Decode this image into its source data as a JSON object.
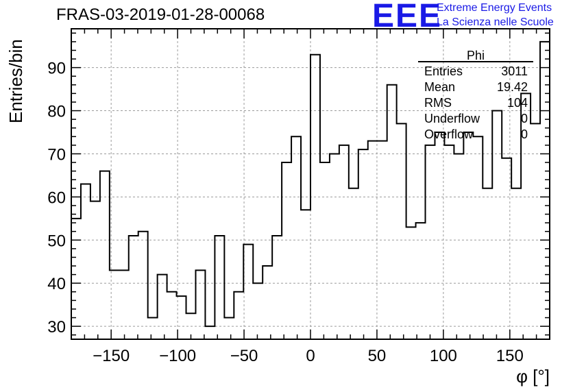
{
  "header": {
    "title": "FRAS-03-2019-01-28-00068",
    "logo": "EEE",
    "logo_line1": "Extreme Energy Events",
    "logo_line2": "La Scienza nelle Scuole",
    "brand_color": "#1a1ae6"
  },
  "stats": {
    "name": "Phi",
    "rows": [
      {
        "label": "Entries",
        "value": "3011"
      },
      {
        "label": "Mean",
        "value": "19.42"
      },
      {
        "label": "RMS",
        "value": "104"
      },
      {
        "label": "Underflow",
        "value": "0"
      },
      {
        "label": "Overflow",
        "value": "0"
      }
    ]
  },
  "chart_data": {
    "type": "histogram",
    "title": "FRAS-03-2019-01-28-00068",
    "xlabel": "φ [°]",
    "ylabel": "Entries/bin",
    "xlim": [
      -180,
      180
    ],
    "ylim": [
      27,
      99
    ],
    "grid": true,
    "xticks": [
      -150,
      -100,
      -50,
      0,
      50,
      100,
      150
    ],
    "xtick_labels": [
      "−150",
      "−100",
      "−50",
      "0",
      "50",
      "100",
      "150"
    ],
    "yticks": [
      30,
      40,
      50,
      60,
      70,
      80,
      90
    ],
    "yticks_minor_step": 2,
    "xticks_minor_step": 10,
    "bin_width": 7.2,
    "bin_edges_start": -180,
    "values": [
      55,
      63,
      59,
      66,
      43,
      43,
      51,
      52,
      32,
      42,
      38,
      37,
      33,
      43,
      30,
      51,
      32,
      38,
      49,
      40,
      44,
      51,
      68,
      74,
      57,
      93,
      68,
      70,
      72,
      62,
      71,
      73,
      73,
      86,
      77,
      53,
      54,
      72,
      75,
      72,
      70,
      75,
      74,
      62,
      80,
      69,
      62,
      84,
      77,
      96
    ]
  }
}
